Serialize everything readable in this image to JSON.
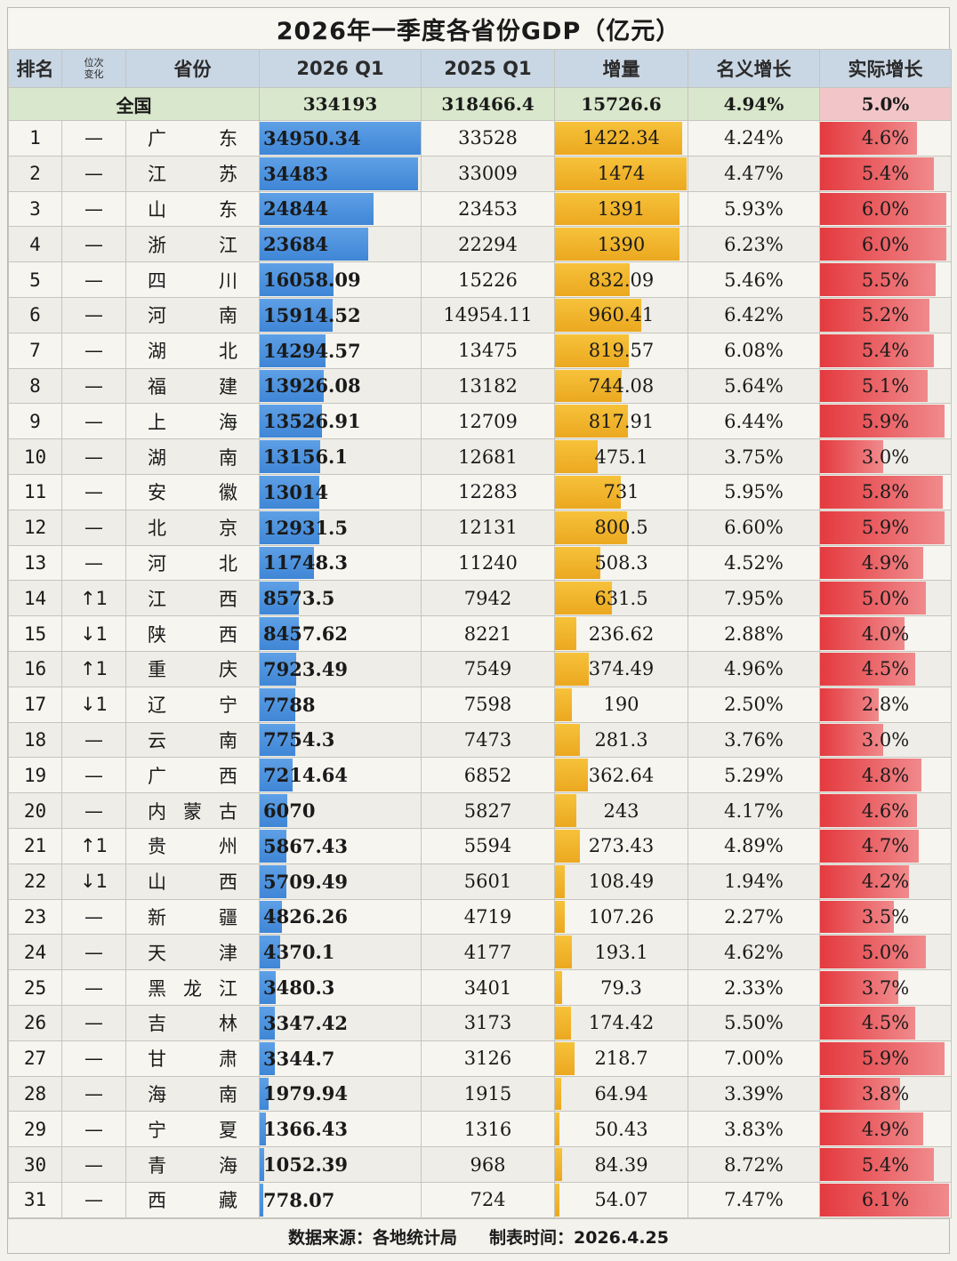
{
  "title": "2026年一季度各省份GDP（亿元）",
  "headers": {
    "rank": "排名",
    "change": "位次变化",
    "province": "省份",
    "gdp2026": "2026 Q1",
    "gdp2025": "2025 Q1",
    "increase": "增量",
    "nominal": "名义增长",
    "real": "实际增长"
  },
  "national": {
    "label": "全国",
    "gdp2026": "334193",
    "gdp2025": "318466.4",
    "increase": "15726.6",
    "nominal": "4.94%",
    "real": "5.0%"
  },
  "rows": [
    {
      "rank": "1",
      "change": "—",
      "province": "广东",
      "gdp2026": "34950.34",
      "gdp2025": "33528",
      "increase": "1422.34",
      "nominal": "4.24%",
      "real": "4.6%"
    },
    {
      "rank": "2",
      "change": "—",
      "province": "江苏",
      "gdp2026": "34483",
      "gdp2025": "33009",
      "increase": "1474",
      "nominal": "4.47%",
      "real": "5.4%"
    },
    {
      "rank": "3",
      "change": "—",
      "province": "山东",
      "gdp2026": "24844",
      "gdp2025": "23453",
      "increase": "1391",
      "nominal": "5.93%",
      "real": "6.0%"
    },
    {
      "rank": "4",
      "change": "—",
      "province": "浙江",
      "gdp2026": "23684",
      "gdp2025": "22294",
      "increase": "1390",
      "nominal": "6.23%",
      "real": "6.0%"
    },
    {
      "rank": "5",
      "change": "—",
      "province": "四川",
      "gdp2026": "16058.09",
      "gdp2025": "15226",
      "increase": "832.09",
      "nominal": "5.46%",
      "real": "5.5%"
    },
    {
      "rank": "6",
      "change": "—",
      "province": "河南",
      "gdp2026": "15914.52",
      "gdp2025": "14954.11",
      "increase": "960.41",
      "nominal": "6.42%",
      "real": "5.2%"
    },
    {
      "rank": "7",
      "change": "—",
      "province": "湖北",
      "gdp2026": "14294.57",
      "gdp2025": "13475",
      "increase": "819.57",
      "nominal": "6.08%",
      "real": "5.4%"
    },
    {
      "rank": "8",
      "change": "—",
      "province": "福建",
      "gdp2026": "13926.08",
      "gdp2025": "13182",
      "increase": "744.08",
      "nominal": "5.64%",
      "real": "5.1%"
    },
    {
      "rank": "9",
      "change": "—",
      "province": "上海",
      "gdp2026": "13526.91",
      "gdp2025": "12709",
      "increase": "817.91",
      "nominal": "6.44%",
      "real": "5.9%"
    },
    {
      "rank": "10",
      "change": "—",
      "province": "湖南",
      "gdp2026": "13156.1",
      "gdp2025": "12681",
      "increase": "475.1",
      "nominal": "3.75%",
      "real": "3.0%"
    },
    {
      "rank": "11",
      "change": "—",
      "province": "安徽",
      "gdp2026": "13014",
      "gdp2025": "12283",
      "increase": "731",
      "nominal": "5.95%",
      "real": "5.8%"
    },
    {
      "rank": "12",
      "change": "—",
      "province": "北京",
      "gdp2026": "12931.5",
      "gdp2025": "12131",
      "increase": "800.5",
      "nominal": "6.60%",
      "real": "5.9%"
    },
    {
      "rank": "13",
      "change": "—",
      "province": "河北",
      "gdp2026": "11748.3",
      "gdp2025": "11240",
      "increase": "508.3",
      "nominal": "4.52%",
      "real": "4.9%"
    },
    {
      "rank": "14",
      "change": "↑1",
      "province": "江西",
      "gdp2026": "8573.5",
      "gdp2025": "7942",
      "increase": "631.5",
      "nominal": "7.95%",
      "real": "5.0%"
    },
    {
      "rank": "15",
      "change": "↓1",
      "province": "陕西",
      "gdp2026": "8457.62",
      "gdp2025": "8221",
      "increase": "236.62",
      "nominal": "2.88%",
      "real": "4.0%"
    },
    {
      "rank": "16",
      "change": "↑1",
      "province": "重庆",
      "gdp2026": "7923.49",
      "gdp2025": "7549",
      "increase": "374.49",
      "nominal": "4.96%",
      "real": "4.5%"
    },
    {
      "rank": "17",
      "change": "↓1",
      "province": "辽宁",
      "gdp2026": "7788",
      "gdp2025": "7598",
      "increase": "190",
      "nominal": "2.50%",
      "real": "2.8%"
    },
    {
      "rank": "18",
      "change": "—",
      "province": "云南",
      "gdp2026": "7754.3",
      "gdp2025": "7473",
      "increase": "281.3",
      "nominal": "3.76%",
      "real": "3.0%"
    },
    {
      "rank": "19",
      "change": "—",
      "province": "广西",
      "gdp2026": "7214.64",
      "gdp2025": "6852",
      "increase": "362.64",
      "nominal": "5.29%",
      "real": "4.8%"
    },
    {
      "rank": "20",
      "change": "—",
      "province": "内蒙古",
      "gdp2026": "6070",
      "gdp2025": "5827",
      "increase": "243",
      "nominal": "4.17%",
      "real": "4.6%"
    },
    {
      "rank": "21",
      "change": "↑1",
      "province": "贵州",
      "gdp2026": "5867.43",
      "gdp2025": "5594",
      "increase": "273.43",
      "nominal": "4.89%",
      "real": "4.7%"
    },
    {
      "rank": "22",
      "change": "↓1",
      "province": "山西",
      "gdp2026": "5709.49",
      "gdp2025": "5601",
      "increase": "108.49",
      "nominal": "1.94%",
      "real": "4.2%"
    },
    {
      "rank": "23",
      "change": "—",
      "province": "新疆",
      "gdp2026": "4826.26",
      "gdp2025": "4719",
      "increase": "107.26",
      "nominal": "2.27%",
      "real": "3.5%"
    },
    {
      "rank": "24",
      "change": "—",
      "province": "天津",
      "gdp2026": "4370.1",
      "gdp2025": "4177",
      "increase": "193.1",
      "nominal": "4.62%",
      "real": "5.0%"
    },
    {
      "rank": "25",
      "change": "—",
      "province": "黑龙江",
      "gdp2026": "3480.3",
      "gdp2025": "3401",
      "increase": "79.3",
      "nominal": "2.33%",
      "real": "3.7%"
    },
    {
      "rank": "26",
      "change": "—",
      "province": "吉林",
      "gdp2026": "3347.42",
      "gdp2025": "3173",
      "increase": "174.42",
      "nominal": "5.50%",
      "real": "4.5%"
    },
    {
      "rank": "27",
      "change": "—",
      "province": "甘肃",
      "gdp2026": "3344.7",
      "gdp2025": "3126",
      "increase": "218.7",
      "nominal": "7.00%",
      "real": "5.9%"
    },
    {
      "rank": "28",
      "change": "—",
      "province": "海南",
      "gdp2026": "1979.94",
      "gdp2025": "1915",
      "increase": "64.94",
      "nominal": "3.39%",
      "real": "3.8%"
    },
    {
      "rank": "29",
      "change": "—",
      "province": "宁夏",
      "gdp2026": "1366.43",
      "gdp2025": "1316",
      "increase": "50.43",
      "nominal": "3.83%",
      "real": "4.9%"
    },
    {
      "rank": "30",
      "change": "—",
      "province": "青海",
      "gdp2026": "1052.39",
      "gdp2025": "968",
      "increase": "84.39",
      "nominal": "8.72%",
      "real": "5.4%"
    },
    {
      "rank": "31",
      "change": "—",
      "province": "西藏",
      "gdp2026": "778.07",
      "gdp2025": "724",
      "increase": "54.07",
      "nominal": "7.47%",
      "real": "6.1%"
    }
  ],
  "footer": {
    "source": "数据来源：各地统计局",
    "date": "制表时间：2026.4.25"
  },
  "colors": {
    "gdp_bar": "#4a8fdc",
    "increase_bar": "#f0b52c",
    "real_growth_bar": "#e43a3f",
    "header_bg": "#c9d6e4",
    "national_bg": "#d9e7cc"
  }
}
